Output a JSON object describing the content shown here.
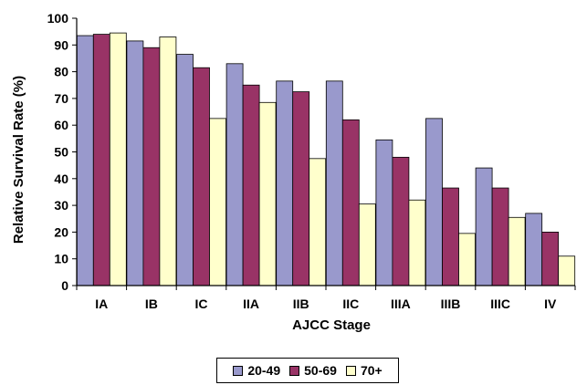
{
  "chart_data": {
    "type": "bar",
    "title": "",
    "xlabel": "AJCC Stage",
    "ylabel": "Relative Survival Rate (%)",
    "ylim": [
      0,
      100
    ],
    "yticks": [
      0,
      10,
      20,
      30,
      40,
      50,
      60,
      70,
      80,
      90,
      100
    ],
    "grid": false,
    "legend_position": "bottom",
    "categories": [
      "IA",
      "IB",
      "IC",
      "IIA",
      "IIB",
      "IIC",
      "IIIA",
      "IIIB",
      "IIIC",
      "IV"
    ],
    "series": [
      {
        "name": "20-49",
        "color": "#9999cc",
        "values": [
          93.5,
          91.5,
          86.5,
          83,
          76.5,
          76.5,
          54.5,
          62.5,
          44,
          27
        ]
      },
      {
        "name": "50-69",
        "color": "#993366",
        "values": [
          94,
          89,
          81.5,
          75,
          72.5,
          62,
          48,
          36.5,
          36.5,
          20
        ]
      },
      {
        "name": "70+",
        "color": "#ffffcc",
        "values": [
          94.5,
          93,
          62.5,
          68.5,
          47.5,
          30.5,
          32,
          19.5,
          25.5,
          11
        ]
      }
    ]
  }
}
